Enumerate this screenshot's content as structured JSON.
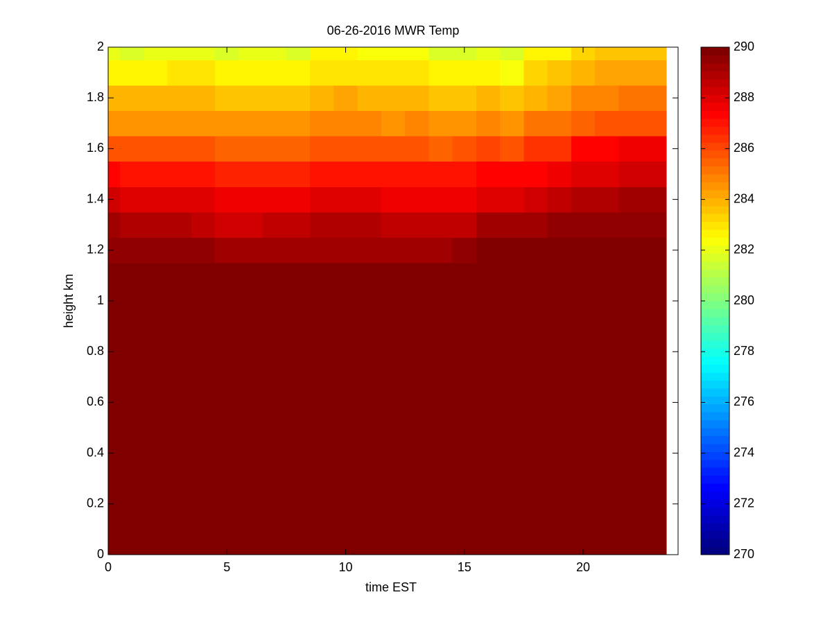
{
  "chart_data": {
    "type": "heatmap",
    "title": "06-26-2016 MWR Temp",
    "xlabel": "time EST",
    "ylabel": "height km",
    "x": [
      0,
      1,
      2,
      3,
      4,
      5,
      6,
      7,
      8,
      9,
      10,
      11,
      12,
      13,
      14,
      15,
      16,
      17,
      18,
      19,
      20,
      21,
      22,
      23
    ],
    "y": [
      0,
      0.1,
      0.2,
      0.3,
      0.4,
      0.5,
      0.6,
      0.7,
      0.8,
      0.9,
      1,
      1.1,
      1.2,
      1.3,
      1.4,
      1.5,
      1.6,
      1.7,
      1.8,
      1.9,
      2
    ],
    "values": [
      [
        290,
        290,
        290,
        290,
        290,
        290,
        290,
        290,
        290,
        290,
        290,
        290,
        290,
        290,
        290,
        290,
        290,
        290,
        290,
        290,
        290,
        290,
        290,
        290
      ],
      [
        290,
        290,
        290,
        290,
        290,
        290,
        290,
        290,
        290,
        290,
        290,
        290,
        290,
        290,
        290,
        290,
        290,
        290,
        290,
        290,
        290,
        290,
        290,
        290
      ],
      [
        290,
        290,
        290,
        290,
        290,
        290,
        290,
        290,
        290,
        290,
        290,
        290,
        290,
        290,
        290,
        290,
        290,
        290,
        290,
        290,
        290,
        290,
        290,
        290
      ],
      [
        290,
        290,
        290,
        290,
        290,
        290,
        290,
        290,
        290,
        290,
        290,
        290,
        290,
        290,
        290,
        290,
        290,
        290,
        290,
        290,
        290,
        290,
        290,
        290
      ],
      [
        290,
        290,
        290,
        290,
        290,
        290,
        290,
        290,
        290,
        290,
        290,
        290,
        290,
        290,
        290,
        290,
        290,
        290,
        290,
        290,
        290,
        290,
        290,
        290
      ],
      [
        290,
        290,
        290,
        290,
        290,
        290,
        290,
        290,
        290,
        290,
        290,
        290,
        290,
        290,
        290,
        290,
        290,
        290,
        290,
        290,
        290,
        290,
        290,
        290
      ],
      [
        290,
        290,
        290,
        290,
        290,
        290,
        290,
        290,
        290,
        290,
        290,
        290,
        290,
        290,
        290,
        290,
        290,
        290,
        290,
        290,
        290,
        290,
        290,
        290
      ],
      [
        290,
        290,
        290,
        290,
        290,
        290,
        290,
        290,
        290,
        290,
        290,
        290,
        290,
        290,
        290,
        290,
        290,
        290,
        290,
        290,
        290,
        290,
        290,
        290
      ],
      [
        290,
        290,
        290,
        290,
        290,
        290,
        290,
        290,
        290,
        290,
        290,
        290,
        290,
        290,
        290,
        290,
        290,
        290,
        290,
        290,
        290,
        290,
        290,
        290
      ],
      [
        290,
        290,
        290,
        290,
        290,
        290,
        290,
        290,
        290,
        290,
        290,
        290,
        290,
        290,
        290,
        290,
        290,
        290,
        290,
        290,
        290,
        290,
        290,
        290
      ],
      [
        290,
        290,
        290,
        290,
        290,
        290,
        290,
        290,
        290,
        290,
        290,
        290,
        290,
        290,
        290,
        290,
        290,
        290,
        290,
        290,
        290,
        290,
        290,
        290
      ],
      [
        290,
        290,
        290,
        290,
        290,
        290,
        290,
        290,
        290,
        290,
        290,
        290,
        290,
        290,
        290,
        290,
        290,
        290,
        290,
        290,
        290,
        290,
        290,
        290
      ],
      [
        289.5,
        289.5,
        289.5,
        289.5,
        289.5,
        289.1,
        289.1,
        289.1,
        289.1,
        289.3,
        289.3,
        289.3,
        289.1,
        289.1,
        289.1,
        289.4,
        289.8,
        289.8,
        289.8,
        289.8,
        289.8,
        289.8,
        289.8,
        289.8
      ],
      [
        289.2,
        288.9,
        288.9,
        288.9,
        288.6,
        288.4,
        288.4,
        288.7,
        288.7,
        288.9,
        288.9,
        288.9,
        288.7,
        288.7,
        288.7,
        288.7,
        289.1,
        289.1,
        289.1,
        289.6,
        289.6,
        289.6,
        289.6,
        289.6
      ],
      [
        288.3,
        288,
        288,
        288,
        288,
        287.5,
        287.5,
        287.5,
        287.8,
        288,
        288,
        288,
        287.8,
        287.8,
        287.8,
        287.8,
        288,
        288,
        288.4,
        288.6,
        288.9,
        288.9,
        289.2,
        289.2
      ],
      [
        287.4,
        287,
        287,
        287,
        287,
        286.7,
        286.7,
        286.7,
        286.7,
        286.9,
        286.9,
        286.9,
        286.9,
        286.9,
        286.9,
        286.9,
        287.2,
        287.2,
        287.2,
        287.8,
        288.1,
        288.1,
        288.4,
        288.4
      ],
      [
        285.8,
        285.8,
        285.8,
        285.8,
        285.8,
        285.5,
        285.5,
        285.5,
        285.5,
        285.7,
        285.7,
        285.7,
        285.7,
        285.7,
        285.5,
        285.8,
        286,
        285.7,
        286.3,
        286.5,
        287.2,
        287.2,
        287.5,
        287.5
      ],
      [
        284.5,
        284.5,
        284.5,
        284.5,
        284.5,
        284.4,
        284.4,
        284.4,
        284.4,
        284.7,
        284.7,
        284.7,
        284.5,
        284.8,
        284.6,
        284.6,
        284.9,
        284.6,
        285,
        285.2,
        285.6,
        285.8,
        285.8,
        285.8
      ],
      [
        283.8,
        283.8,
        283.8,
        283.8,
        283.8,
        283.5,
        283.5,
        283.5,
        283.5,
        283.8,
        284.1,
        283.8,
        283.8,
        283.8,
        283.6,
        283.6,
        283.9,
        283.6,
        284,
        284.3,
        284.7,
        284.9,
        285.2,
        285.2
      ],
      [
        282.7,
        282.7,
        282.7,
        283,
        283,
        282.8,
        282.8,
        282.8,
        282.8,
        283,
        283,
        283,
        283,
        283,
        282.8,
        282.8,
        282.8,
        282.3,
        283.3,
        283.5,
        284,
        284.2,
        284.2,
        284.2
      ],
      [
        282,
        281.8,
        282,
        282,
        282,
        281.8,
        282,
        282,
        281.7,
        282.5,
        282.5,
        282.3,
        282.3,
        282.3,
        281.8,
        281.8,
        282,
        281.6,
        282.6,
        282.6,
        283.3,
        283.5,
        283.7,
        283.7
      ]
    ],
    "xlim": [
      0,
      24
    ],
    "xticks": [
      0,
      5,
      10,
      15,
      20
    ],
    "ylim": [
      0,
      2
    ],
    "yticks": [
      0,
      0.2,
      0.4,
      0.6,
      0.8,
      1,
      1.2,
      1.4,
      1.6,
      1.8,
      2
    ],
    "colorbar": {
      "colormap": "jet",
      "clim": [
        270,
        290
      ],
      "ticks": [
        270,
        272,
        274,
        276,
        278,
        280,
        282,
        284,
        286,
        288,
        290
      ]
    }
  }
}
